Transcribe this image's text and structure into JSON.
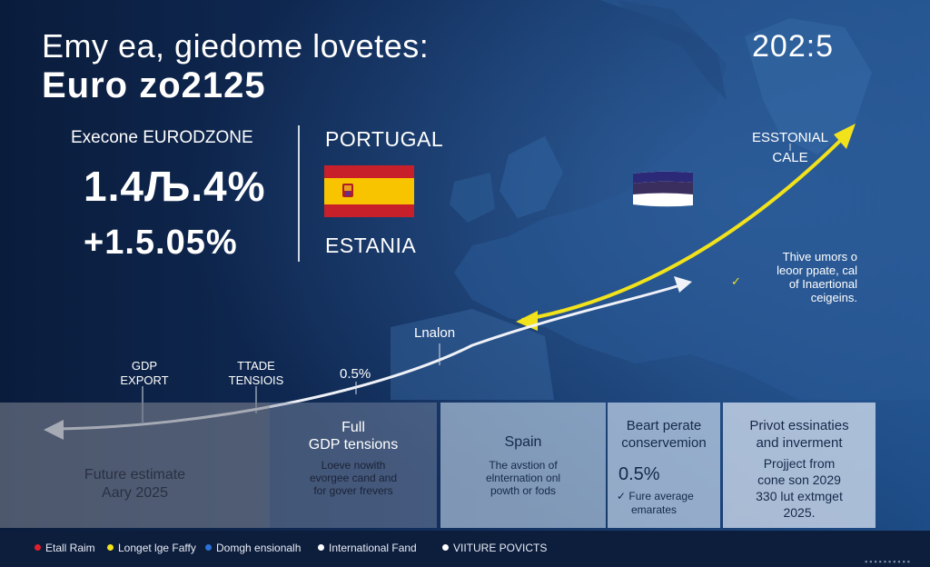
{
  "header": {
    "title_line1": "Emy ea, giedome lovetes:",
    "title_line2": "Euro zo2125",
    "year": "202:5"
  },
  "stats": {
    "label": "Execone EURODZONE",
    "value1": "1.4Љ.4%",
    "value2": "+1.5.05%"
  },
  "countries": {
    "portugal_label": "PORTUGAL",
    "estania_label": "ESTANIA"
  },
  "map": {
    "estonial_line1": "ESSTONIAL",
    "estonial_line2": "CALE",
    "note_line1": "Thive umors o",
    "note_line2": "leoor ppate, cal",
    "note_line3": "of Inaertional",
    "note_line4": "ceigeins.",
    "madrid_label": "Lnalon",
    "gdp_export_line1": "GDP",
    "gdp_export_line2": "EXPORT",
    "trade_line1": "TTADE",
    "trade_line2": "TENSIOIS",
    "pct_label": "0.5%"
  },
  "panels": {
    "p1": {
      "line1": "Future estimate",
      "line2": "Aary 2025"
    },
    "p2": {
      "title1": "Full",
      "title2": "GDP tensions",
      "body1": "Loeve nowith",
      "body2": "evorgee cand and",
      "body3": "for gover frevers"
    },
    "p3": {
      "title": "Spain",
      "body1": "The avstion of",
      "body2": "elnternation onl",
      "body3": "powth or fods"
    },
    "p4": {
      "title1": "Beart perate",
      "title2": "conservemion",
      "pct": "0.5%",
      "check_line1": "Fure average",
      "check_line2": "emarates"
    },
    "p5": {
      "title1": "Privot essinaties",
      "title2": "and inverment",
      "body1": "Projject from",
      "body2": "cone son 2029",
      "body3": "330 lut extmget",
      "body4": "2025."
    }
  },
  "legend": [
    {
      "label": "Etall Raim",
      "color": "#e0202a"
    },
    {
      "label": "Longet lge Faffy",
      "color": "#f2e21c"
    },
    {
      "label": "Domgh ensionalh",
      "color": "#2a72d8"
    },
    {
      "label": "International Fand",
      "color": "#ffffff"
    },
    {
      "label": "VIITURE POVICTS",
      "color": "#ffffff"
    }
  ],
  "footer_right": "▪▪▪▪▪▪▪▪▪▪",
  "colors": {
    "background": "#0c2249",
    "arrow_yellow": "#f2e21c",
    "arrow_white": "#ffffff",
    "spain_red": "#c8202a",
    "spain_yellow": "#f8c400"
  }
}
